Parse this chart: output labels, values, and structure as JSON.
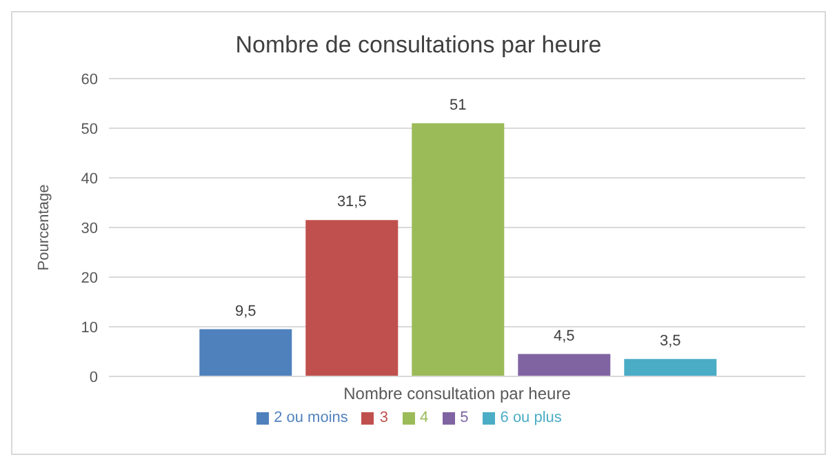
{
  "chart_data": {
    "type": "bar",
    "title": "Nombre de consultations par heure",
    "ylabel": "Pourcentage",
    "categories": [
      "Nombre consultation par heure"
    ],
    "series": [
      {
        "name": "2 ou moins",
        "color": "#4f81bd",
        "values": [
          9.5
        ],
        "value_labels": [
          "9,5"
        ]
      },
      {
        "name": "3",
        "color": "#c0504d",
        "values": [
          31.5
        ],
        "value_labels": [
          "31,5"
        ]
      },
      {
        "name": "4",
        "color": "#9bbb59",
        "values": [
          51
        ],
        "value_labels": [
          "51"
        ]
      },
      {
        "name": "5",
        "color": "#8064a2",
        "values": [
          4.5
        ],
        "value_labels": [
          "4,5"
        ]
      },
      {
        "name": "6 ou plus",
        "color": "#4bacc6",
        "values": [
          3.5
        ],
        "value_labels": [
          "3,5"
        ]
      }
    ],
    "ylim": [
      0,
      60
    ],
    "yticks": [
      0,
      10,
      20,
      30,
      40,
      50,
      60
    ],
    "grid": "y",
    "legend": "bottom"
  }
}
